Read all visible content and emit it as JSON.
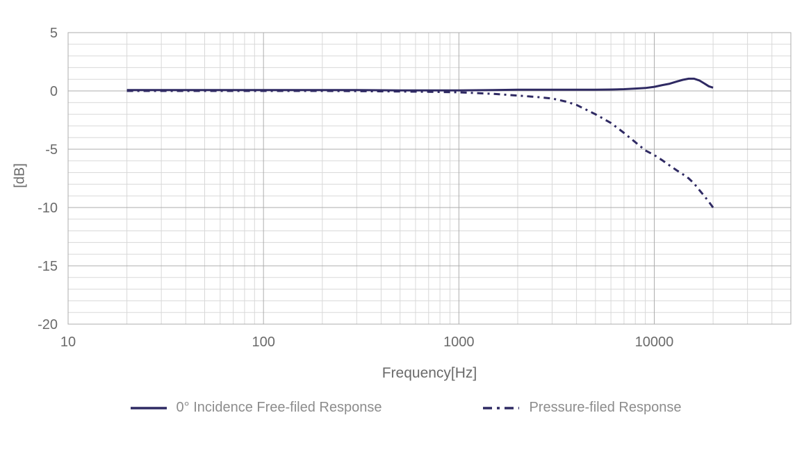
{
  "colors": {
    "series_line": "#2f2a63",
    "grid_minor": "#d8d8d8",
    "grid_major": "#adadad",
    "tick_text": "#6a6a6a",
    "axis_title_text": "#6a6a6a",
    "legend_text": "#8c8c8c",
    "background": "#ffffff"
  },
  "chart_data": {
    "type": "line",
    "title": "",
    "xlabel": "Frequency[Hz]",
    "ylabel": "[dB]",
    "x_scale": "log",
    "xlim": [
      10,
      50000
    ],
    "ylim": [
      -20,
      5
    ],
    "grid": "both-major-and-minor",
    "y_minor_step": 1,
    "y_major_step": 5,
    "legend_position": "bottom",
    "x_ticks": [
      {
        "label": "10",
        "value": 10
      },
      {
        "label": "100",
        "value": 100
      },
      {
        "label": "1000",
        "value": 1000
      },
      {
        "label": "10000",
        "value": 10000
      }
    ],
    "y_ticks": [
      {
        "label": "5",
        "value": 5
      },
      {
        "label": "0",
        "value": 0
      },
      {
        "label": "-5",
        "value": -5
      },
      {
        "label": "-10",
        "value": -10
      },
      {
        "label": "-15",
        "value": -15
      },
      {
        "label": "-20",
        "value": -20
      }
    ],
    "series": [
      {
        "name": "0° Incidence Free-filed Response",
        "style": "solid",
        "color": "#2f2a63",
        "points": [
          [
            20,
            0.08
          ],
          [
            30,
            0.08
          ],
          [
            50,
            0.08
          ],
          [
            70,
            0.08
          ],
          [
            100,
            0.08
          ],
          [
            150,
            0.08
          ],
          [
            200,
            0.08
          ],
          [
            300,
            0.07
          ],
          [
            500,
            0.05
          ],
          [
            700,
            0.05
          ],
          [
            1000,
            0.05
          ],
          [
            1500,
            0.07
          ],
          [
            2000,
            0.1
          ],
          [
            3000,
            0.1
          ],
          [
            4000,
            0.1
          ],
          [
            5000,
            0.1
          ],
          [
            6000,
            0.12
          ],
          [
            7000,
            0.15
          ],
          [
            8000,
            0.2
          ],
          [
            9000,
            0.25
          ],
          [
            10000,
            0.35
          ],
          [
            11000,
            0.5
          ],
          [
            12000,
            0.62
          ],
          [
            13000,
            0.8
          ],
          [
            14000,
            0.95
          ],
          [
            15000,
            1.05
          ],
          [
            16000,
            1.05
          ],
          [
            17000,
            0.9
          ],
          [
            18000,
            0.65
          ],
          [
            19000,
            0.4
          ],
          [
            20000,
            0.28
          ]
        ]
      },
      {
        "name": "Pressure-filed Response",
        "style": "dash-dot",
        "color": "#2f2a63",
        "points": [
          [
            20,
            0
          ],
          [
            50,
            0
          ],
          [
            100,
            0
          ],
          [
            200,
            0
          ],
          [
            300,
            -0.02
          ],
          [
            500,
            -0.05
          ],
          [
            700,
            -0.07
          ],
          [
            1000,
            -0.12
          ],
          [
            1500,
            -0.25
          ],
          [
            2000,
            -0.4
          ],
          [
            2500,
            -0.52
          ],
          [
            3000,
            -0.65
          ],
          [
            3500,
            -0.9
          ],
          [
            4000,
            -1.2
          ],
          [
            5000,
            -2.0
          ],
          [
            6000,
            -2.75
          ],
          [
            7000,
            -3.6
          ],
          [
            8000,
            -4.4
          ],
          [
            9000,
            -5.1
          ],
          [
            10000,
            -5.5
          ],
          [
            11000,
            -5.95
          ],
          [
            12000,
            -6.4
          ],
          [
            13000,
            -6.8
          ],
          [
            14000,
            -7.15
          ],
          [
            15000,
            -7.5
          ],
          [
            16000,
            -7.95
          ],
          [
            17000,
            -8.5
          ],
          [
            18000,
            -9.0
          ],
          [
            19000,
            -9.5
          ],
          [
            20000,
            -10.0
          ]
        ]
      }
    ]
  },
  "legend": {
    "items": [
      {
        "label": "0° Incidence Free-filed Response",
        "swatch": "solid-line"
      },
      {
        "label": "Pressure-filed Response",
        "swatch": "dash-dot-line"
      }
    ]
  }
}
